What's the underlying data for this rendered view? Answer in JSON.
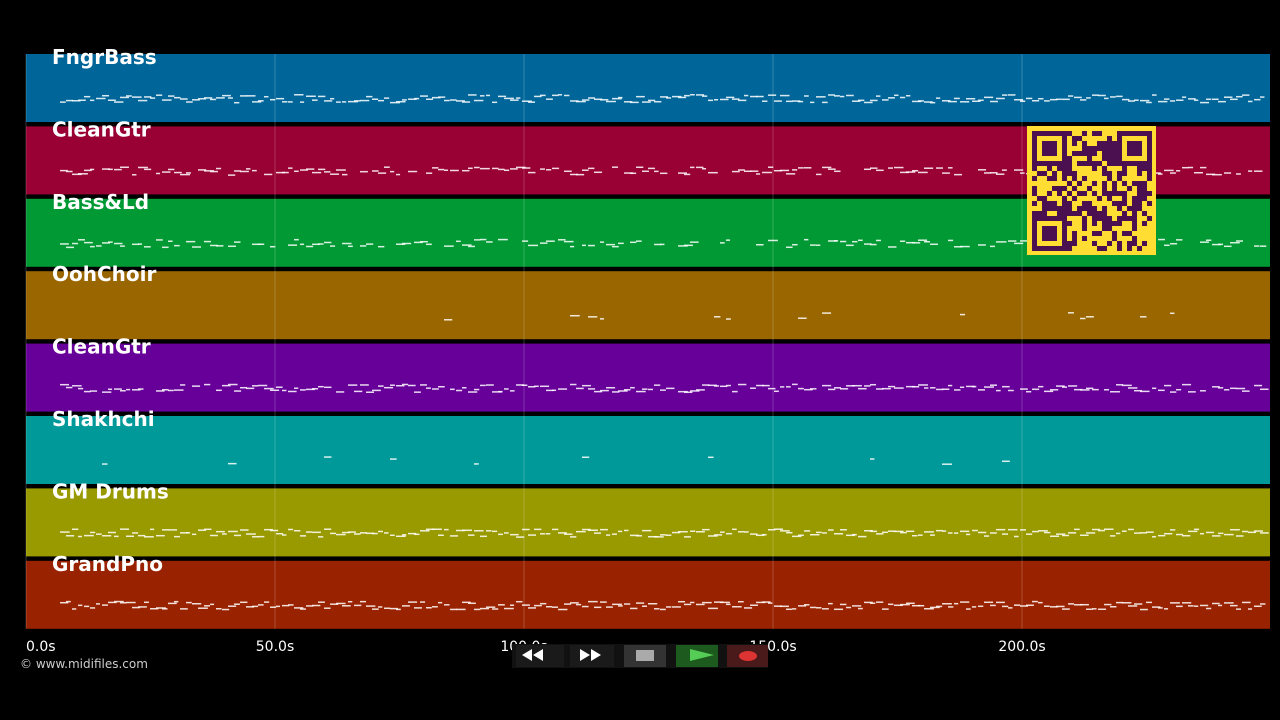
{
  "tracks": [
    {
      "name": "FngrBass",
      "color": "#006699"
    },
    {
      "name": "CleanGtr",
      "color": "#990033"
    },
    {
      "name": "Bass&Ld",
      "color": "#009933"
    },
    {
      "name": "OohChoir",
      "color": "#996600"
    },
    {
      "name": "CleanGtr",
      "color": "#660099"
    },
    {
      "name": "Shakhchi",
      "color": "#009999"
    },
    {
      "name": "GM Drums",
      "color": "#999900"
    },
    {
      "name": "GrandPno",
      "color": "#992200"
    }
  ],
  "time_axis": {
    "ticks": [
      "0.0s",
      "50.0s",
      "100.0s",
      "150.0s",
      "200.0s"
    ]
  },
  "footer": {
    "copyright": "© www.midifiles.com"
  }
}
